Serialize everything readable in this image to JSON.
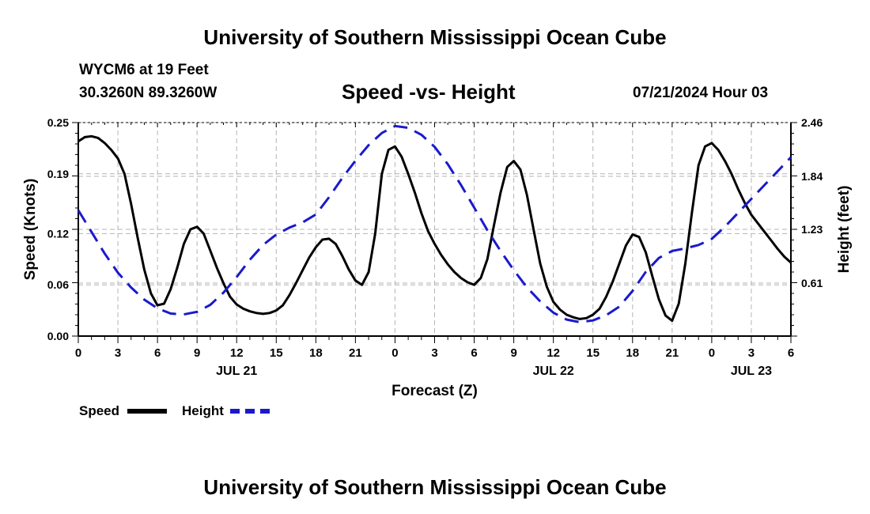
{
  "header": {
    "title": "University of Southern Mississippi Ocean Cube",
    "station": "WYCM6 at 19 Feet",
    "coords": "30.3260N  89.3260W",
    "chart_title": "Speed -vs- Height",
    "date": "07/21/2024 Hour 03",
    "footer_title": "University of Southern Mississippi Ocean Cube"
  },
  "colors": {
    "speed": "#000000",
    "height": "#1a1acc",
    "grid": "#b4b4b4"
  },
  "legend": {
    "speed_label": "Speed",
    "height_label": "Height"
  },
  "chart_data": {
    "type": "line",
    "title": "Speed -vs- Height",
    "xlabel": "Forecast (Z)",
    "ylabel": "Speed (Knots)",
    "y2label": "Height (feet)",
    "xlim": [
      0,
      54
    ],
    "ylim": [
      0,
      0.25
    ],
    "y2lim": [
      0,
      2.46
    ],
    "yticks": [
      0.0,
      0.06,
      0.12,
      0.19,
      0.25
    ],
    "ytick_labels": [
      "0.00",
      "0.06",
      "0.12",
      "0.19",
      "0.25"
    ],
    "y2ticks": [
      0.61,
      1.23,
      1.84,
      2.46
    ],
    "y2tick_labels": [
      "0.61",
      "1.23",
      "1.84",
      "2.46"
    ],
    "xticks": [
      0,
      3,
      6,
      9,
      12,
      15,
      18,
      21,
      24,
      27,
      30,
      33,
      36,
      39,
      42,
      45,
      48,
      51,
      54
    ],
    "xtick_labels": [
      "0",
      "3",
      "6",
      "9",
      "12",
      "15",
      "18",
      "21",
      "0",
      "3",
      "6",
      "9",
      "12",
      "15",
      "18",
      "21",
      "0",
      "3",
      "6"
    ],
    "date_labels": [
      {
        "x": 12,
        "label": "JUL 21"
      },
      {
        "x": 36,
        "label": "JUL 22"
      },
      {
        "x": 51,
        "label": "JUL 23"
      }
    ],
    "grid": true,
    "series": [
      {
        "name": "Speed",
        "axis": "left",
        "style": "solid",
        "x": [
          0,
          0.5,
          1,
          1.5,
          2,
          2.5,
          3,
          3.5,
          4,
          4.5,
          5,
          5.5,
          6,
          6.5,
          7,
          7.5,
          8,
          8.5,
          9,
          9.5,
          10,
          10.5,
          11,
          11.5,
          12,
          12.5,
          13,
          13.5,
          14,
          14.5,
          15,
          15.5,
          16,
          16.5,
          17,
          17.5,
          18,
          18.5,
          19,
          19.5,
          20,
          20.5,
          21,
          21.5,
          22,
          22.5,
          23,
          23.5,
          24,
          24.5,
          25,
          25.5,
          26,
          26.5,
          27,
          27.5,
          28,
          28.5,
          29,
          29.5,
          30,
          30.5,
          31,
          31.5,
          32,
          32.5,
          33,
          33.5,
          34,
          34.5,
          35,
          35.5,
          36,
          36.5,
          37,
          37.5,
          38,
          38.5,
          39,
          39.5,
          40,
          40.5,
          41,
          41.5,
          42,
          42.5,
          43,
          43.5,
          44,
          44.5,
          45,
          45.5,
          46,
          46.5,
          47,
          47.5,
          48,
          48.5,
          49,
          49.5,
          50,
          50.5,
          51,
          51.5,
          52,
          52.5,
          53,
          53.5,
          54
        ],
        "y": [
          0.228,
          0.233,
          0.234,
          0.232,
          0.226,
          0.218,
          0.208,
          0.19,
          0.155,
          0.115,
          0.078,
          0.05,
          0.036,
          0.038,
          0.055,
          0.08,
          0.108,
          0.125,
          0.128,
          0.12,
          0.1,
          0.08,
          0.062,
          0.046,
          0.037,
          0.032,
          0.029,
          0.027,
          0.026,
          0.027,
          0.03,
          0.036,
          0.048,
          0.062,
          0.077,
          0.092,
          0.104,
          0.113,
          0.114,
          0.108,
          0.094,
          0.078,
          0.065,
          0.06,
          0.075,
          0.12,
          0.19,
          0.218,
          0.222,
          0.21,
          0.19,
          0.168,
          0.144,
          0.123,
          0.108,
          0.095,
          0.084,
          0.075,
          0.068,
          0.063,
          0.06,
          0.068,
          0.09,
          0.13,
          0.168,
          0.198,
          0.205,
          0.195,
          0.165,
          0.125,
          0.085,
          0.058,
          0.04,
          0.031,
          0.025,
          0.022,
          0.02,
          0.021,
          0.025,
          0.032,
          0.046,
          0.064,
          0.085,
          0.106,
          0.119,
          0.116,
          0.098,
          0.07,
          0.043,
          0.024,
          0.018,
          0.038,
          0.085,
          0.145,
          0.2,
          0.222,
          0.226,
          0.218,
          0.205,
          0.19,
          0.172,
          0.156,
          0.142,
          0.132,
          0.122,
          0.112,
          0.102,
          0.093,
          0.086
        ]
      },
      {
        "name": "Height",
        "axis": "right",
        "style": "dashed",
        "x": [
          0,
          1,
          2,
          3,
          4,
          5,
          6,
          7,
          8,
          9,
          10,
          11,
          12,
          13,
          14,
          15,
          16,
          17,
          18,
          19,
          20,
          21,
          22,
          23,
          24,
          25,
          26,
          27,
          28,
          29,
          30,
          31,
          32,
          33,
          34,
          35,
          36,
          37,
          38,
          39,
          40,
          41,
          42,
          43,
          44,
          45,
          46,
          47,
          48,
          49,
          50,
          51,
          52,
          53,
          54
        ],
        "y": [
          1.45,
          1.2,
          0.95,
          0.73,
          0.56,
          0.42,
          0.32,
          0.26,
          0.25,
          0.28,
          0.36,
          0.5,
          0.68,
          0.88,
          1.05,
          1.17,
          1.25,
          1.31,
          1.4,
          1.6,
          1.82,
          2.02,
          2.2,
          2.34,
          2.42,
          2.4,
          2.32,
          2.18,
          1.98,
          1.74,
          1.48,
          1.22,
          0.98,
          0.76,
          0.56,
          0.4,
          0.27,
          0.19,
          0.16,
          0.18,
          0.24,
          0.34,
          0.52,
          0.74,
          0.9,
          0.98,
          1.01,
          1.05,
          1.12,
          1.26,
          1.42,
          1.58,
          1.74,
          1.9,
          2.06
        ]
      }
    ]
  }
}
